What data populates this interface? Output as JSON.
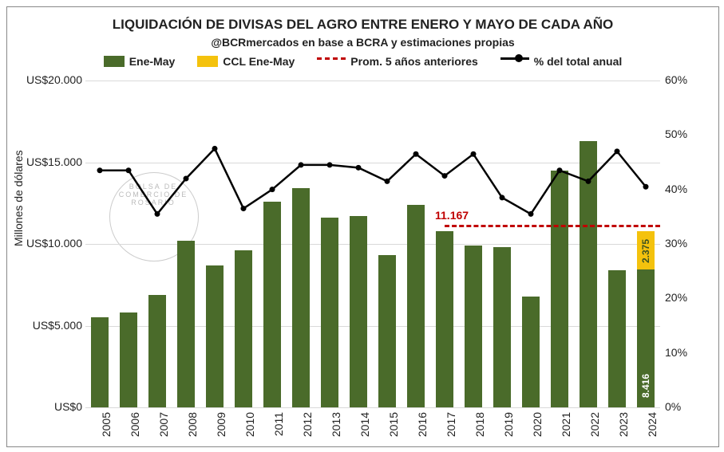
{
  "title": "LIQUIDACIÓN DE DIVISAS DEL AGRO ENTRE ENERO Y MAYO DE CADA AÑO",
  "subtitle": "@BCRmercados en base a BCRA y estimaciones propias",
  "title_fontsize": 17,
  "subtitle_fontsize": 14,
  "legend": {
    "fontsize": 14,
    "items": [
      {
        "label": "Ene-May",
        "kind": "swatch",
        "color": "#4a6b2a"
      },
      {
        "label": "CCL Ene-May",
        "kind": "swatch",
        "color": "#f4c20d"
      },
      {
        "label": "Prom. 5 años anteriores",
        "kind": "dash",
        "color": "#c00000"
      },
      {
        "label": "% del total anual",
        "kind": "line-marker",
        "color": "#000000"
      }
    ]
  },
  "ylabel": "Millones de dólares",
  "chart": {
    "type": "bar+line",
    "bar_color": "#4a6b2a",
    "bar_stacked_color": "#f4c20d",
    "bar_width": 0.62,
    "background_color": "#ffffff",
    "grid_color": "#d9d9d9",
    "y_left": {
      "min": 0,
      "max": 20000,
      "ticks": [
        0,
        5000,
        10000,
        15000,
        20000
      ],
      "tick_labels": [
        "US$0",
        "US$5.000",
        "US$10.000",
        "US$15.000",
        "US$20.000"
      ]
    },
    "y_right": {
      "min": 0,
      "max": 0.6,
      "ticks": [
        0,
        0.1,
        0.2,
        0.3,
        0.4,
        0.5,
        0.6
      ],
      "tick_labels": [
        "0%",
        "10%",
        "20%",
        "30%",
        "40%",
        "50%",
        "60%"
      ]
    },
    "categories": [
      "2005",
      "2006",
      "2007",
      "2008",
      "2009",
      "2010",
      "2011",
      "2012",
      "2013",
      "2014",
      "2015",
      "2016",
      "2017",
      "2018",
      "2019",
      "2020",
      "2021",
      "2022",
      "2023",
      "2024"
    ],
    "bars_main": [
      5500,
      5800,
      6900,
      10200,
      8700,
      9600,
      12600,
      13400,
      11600,
      11700,
      9300,
      12400,
      10800,
      9900,
      9800,
      6800,
      14500,
      16300,
      8400,
      8416
    ],
    "bars_stacked": [
      0,
      0,
      0,
      0,
      0,
      0,
      0,
      0,
      0,
      0,
      0,
      0,
      0,
      0,
      0,
      0,
      0,
      0,
      0,
      2375
    ],
    "line_pct": [
      0.435,
      0.435,
      0.355,
      0.42,
      0.475,
      0.365,
      0.4,
      0.445,
      0.445,
      0.44,
      0.415,
      0.465,
      0.425,
      0.465,
      0.385,
      0.355,
      0.435,
      0.415,
      0.47,
      0.405
    ],
    "line_color": "#000000",
    "line_width": 2.5,
    "marker_size": 7,
    "prom": {
      "value": 11167,
      "label": "11.167",
      "color": "#c00000",
      "from_index": 12,
      "to_index": 19
    },
    "bar_value_labels": [
      {
        "index": 19,
        "which": "main",
        "text": "8.416",
        "color": "#ffffff"
      },
      {
        "index": 19,
        "which": "stacked",
        "text": "2.375",
        "color": "#3a5222"
      }
    ]
  },
  "watermark": "BOLSA DE COMERCIO DE ROSARIO"
}
